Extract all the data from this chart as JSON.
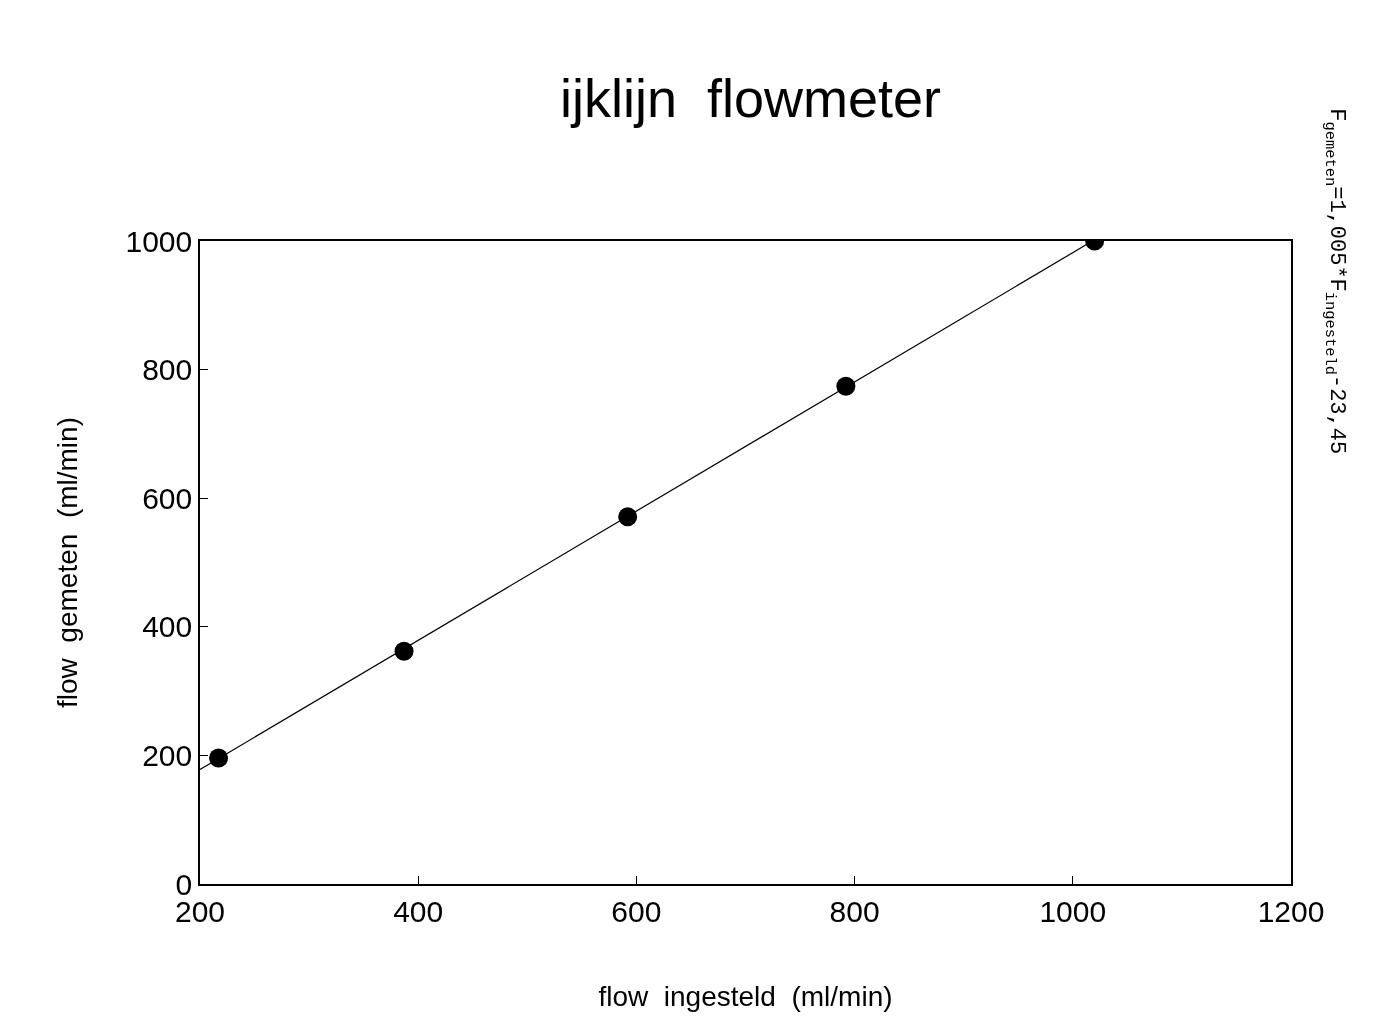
{
  "chart_data": {
    "type": "scatter",
    "title": "ijklijn  flowmeter",
    "xlabel": "flow  ingesteld  (ml/min)",
    "ylabel": "flow  gemeten  (ml/min)",
    "annotations": [
      "F$_{gemeten}$=1,005*F$_{ingesteld}$-23,45"
    ],
    "series": [
      {
        "color": "#000000",
        "marker": "circle",
        "x": [
          217,
          387,
          592,
          792,
          1020
        ],
        "values": [
          196,
          362,
          571,
          774,
          1000
        ]
      },
      {
        "type": "line",
        "color": "#000000",
        "marker": "none",
        "line_style": "solid",
        "x": [
          200,
          1018
        ],
        "values": [
          178,
          1000
        ]
      }
    ],
    "xlim": [
      200,
      1200
    ],
    "xticks": [
      200,
      400,
      600,
      800,
      1000,
      1200
    ],
    "ylim": [
      0,
      1000
    ],
    "yticks": [
      0,
      200,
      400,
      600,
      800,
      1000
    ],
    "grid": false
  }
}
